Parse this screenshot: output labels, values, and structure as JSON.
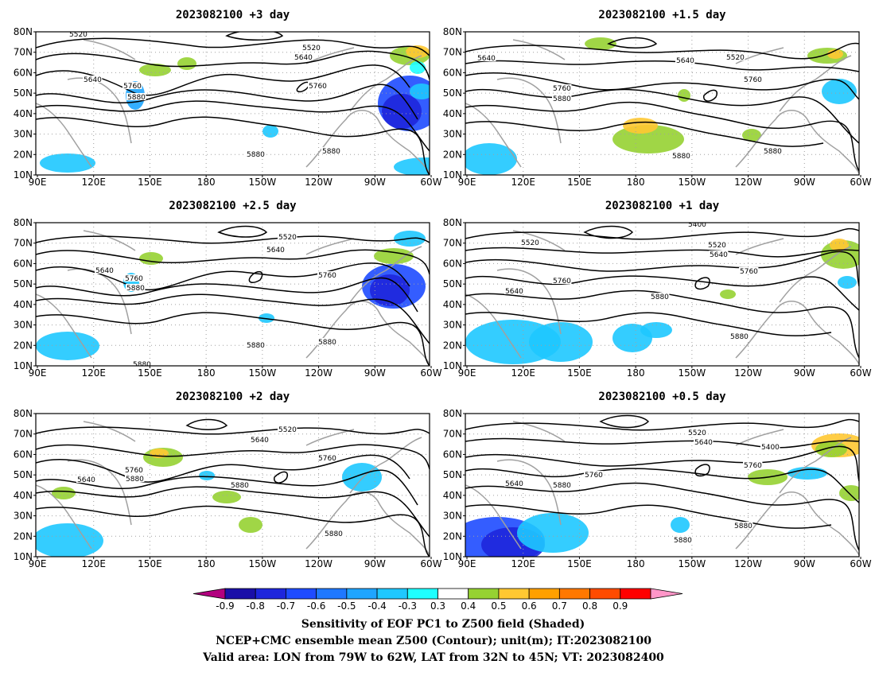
{
  "panels": [
    {
      "id": "p3",
      "title": "2023082100 +3 day",
      "contour_labels": [
        "5520",
        "5640",
        "5520",
        "5640",
        "5760",
        "5880",
        "5760",
        "5880",
        "5880"
      ]
    },
    {
      "id": "p15",
      "title": "2023082100 +1.5 day",
      "contour_labels": [
        "5640",
        "5640",
        "5520",
        "5760",
        "5880",
        "5760",
        "5880",
        "5880"
      ]
    },
    {
      "id": "p25",
      "title": "2023082100 +2.5 day",
      "contour_labels": [
        "5640",
        "5520",
        "5640",
        "5760",
        "5880",
        "5760",
        "5880",
        "5880",
        "5880"
      ]
    },
    {
      "id": "p1",
      "title": "2023082100 +1 day",
      "contour_labels": [
        "5520",
        "5400",
        "5520",
        "5640",
        "5760",
        "5640",
        "5880",
        "5760",
        "5880"
      ]
    },
    {
      "id": "p2",
      "title": "2023082100 +2 day",
      "contour_labels": [
        "5520",
        "5640",
        "5640",
        "5760",
        "5880",
        "5880",
        "5760",
        "5880"
      ]
    },
    {
      "id": "p05",
      "title": "2023082100 +0.5 day",
      "contour_labels": [
        "5520",
        "5640",
        "5400",
        "5640",
        "5880",
        "5760",
        "5760",
        "5880",
        "5880"
      ]
    }
  ],
  "lat_ticks": [
    "80N",
    "70N",
    "60N",
    "50N",
    "40N",
    "30N",
    "20N",
    "10N"
  ],
  "lon_ticks": [
    "90E",
    "120E",
    "150E",
    "180",
    "150W",
    "120W",
    "90W",
    "60W"
  ],
  "colorbar": {
    "ticks": [
      "-0.9",
      "-0.8",
      "-0.7",
      "-0.6",
      "-0.5",
      "-0.4",
      "-0.3",
      "0.3",
      "0.4",
      "0.5",
      "0.6",
      "0.7",
      "0.8",
      "0.9"
    ],
    "colors": [
      "#b2007f",
      "#1a0fa8",
      "#1e26dc",
      "#1e4bff",
      "#1e78ff",
      "#1ea5ff",
      "#1ec8ff",
      "#1effff",
      "#ffffff",
      "#96d232",
      "#ffc832",
      "#ffa000",
      "#ff7800",
      "#ff4b00",
      "#ff0000",
      "#ff96c8"
    ]
  },
  "caption": {
    "line1": "Sensitivity of EOF PC1 to Z500 field (Shaded)",
    "line2": "NCEP+CMC ensemble mean Z500 (Contour); unit(m); IT:2023082100",
    "line3": "Valid area: LON from 79W to 62W, LAT from 32N to 45N; VT: 2023082400"
  },
  "colors": {
    "contour": "#000000",
    "coast": "#a0a0a0",
    "grid": "#a0a0a0"
  }
}
